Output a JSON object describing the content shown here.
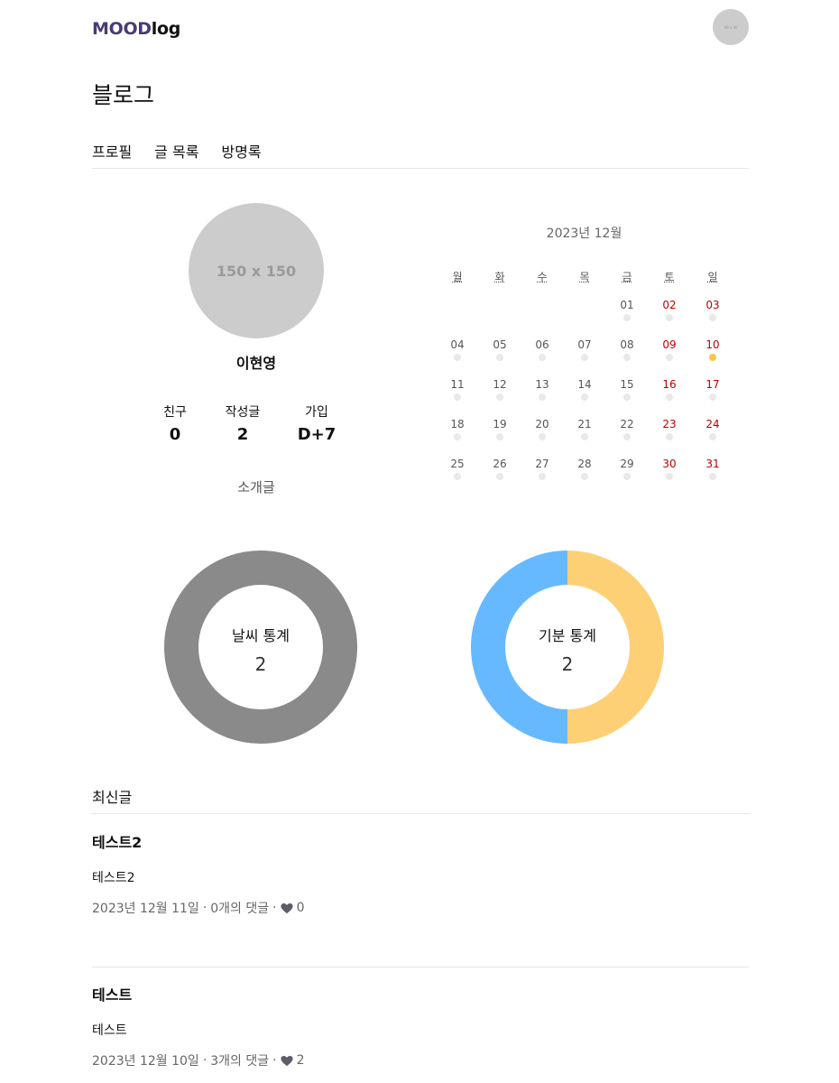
{
  "header": {
    "logo_mood": "MOOD",
    "logo_log": "log",
    "avatar_text": "40 x 40"
  },
  "page_title": "블로그",
  "tabs": [
    {
      "label": "프로필"
    },
    {
      "label": "글 목록"
    },
    {
      "label": "방명록"
    }
  ],
  "profile": {
    "image_text": "150 x 150",
    "name": "이현영",
    "stats": [
      {
        "label": "친구",
        "value": "0"
      },
      {
        "label": "작성글",
        "value": "2"
      },
      {
        "label": "가입",
        "value": "D+7"
      }
    ],
    "intro": "소개글"
  },
  "calendar": {
    "title": "2023년 12월",
    "weekdays": [
      "월",
      "화",
      "수",
      "목",
      "금",
      "토",
      "일"
    ],
    "start_offset": 4,
    "days": [
      "01",
      "02",
      "03",
      "04",
      "05",
      "06",
      "07",
      "08",
      "09",
      "10",
      "11",
      "12",
      "13",
      "14",
      "15",
      "16",
      "17",
      "18",
      "19",
      "20",
      "21",
      "22",
      "23",
      "24",
      "25",
      "26",
      "27",
      "28",
      "29",
      "30",
      "31"
    ],
    "mood_days": [
      "10"
    ]
  },
  "stats_charts": {
    "weather": {
      "label": "날씨 통계",
      "value": "2",
      "segments": [
        {
          "name": "weather",
          "count": 2,
          "color": "#8a8a8a"
        }
      ]
    },
    "mood": {
      "label": "기분 통계",
      "value": "2",
      "segments": [
        {
          "name": "mood-a",
          "count": 1,
          "color": "#fdd075"
        },
        {
          "name": "mood-b",
          "count": 1,
          "color": "#66b9ff"
        }
      ]
    }
  },
  "recent": {
    "title": "최신글",
    "posts": [
      {
        "title": "테스트2",
        "body": "테스트2",
        "date": "2023년 12월 11일",
        "comments": "0개의 댓글",
        "likes": "0"
      },
      {
        "title": "테스트",
        "body": "테스트",
        "date": "2023년 12월 10일",
        "comments": "3개의 댓글",
        "likes": "2"
      }
    ]
  },
  "colors": {
    "brand": "#4b3b74",
    "weekend": "#c00000",
    "mood_dot": "#ffc34d",
    "divider": "#e6e6e6"
  }
}
